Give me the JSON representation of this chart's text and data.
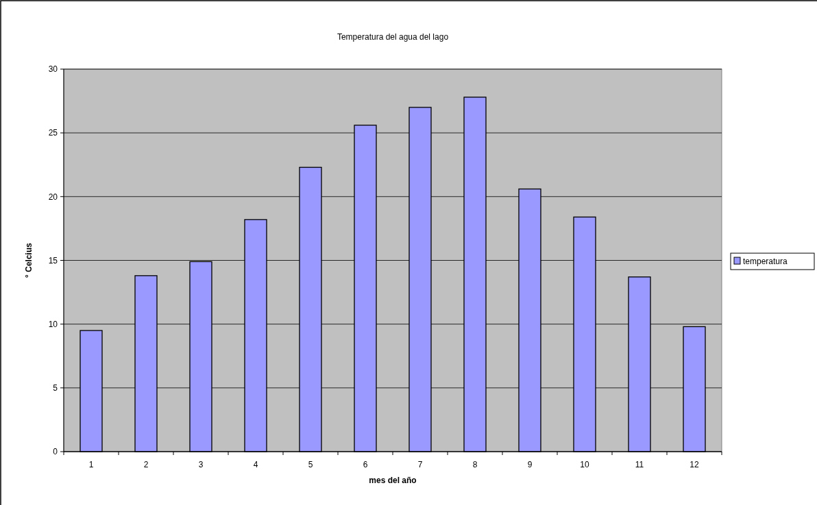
{
  "chart_data": {
    "type": "bar",
    "title": "Temperatura del agua del lago",
    "xlabel": "mes del año",
    "ylabel": "° Celcius",
    "categories": [
      "1",
      "2",
      "3",
      "4",
      "5",
      "6",
      "7",
      "8",
      "9",
      "10",
      "11",
      "12"
    ],
    "series": [
      {
        "name": "temperatura",
        "color": "#9999ff",
        "values": [
          9.5,
          13.8,
          14.9,
          18.2,
          22.3,
          25.6,
          27.0,
          27.8,
          20.6,
          18.4,
          13.7,
          9.8
        ]
      }
    ],
    "ylim": [
      0,
      30
    ],
    "yticks": [
      0,
      5,
      10,
      15,
      20,
      25,
      30
    ],
    "grid": "y",
    "legend": "right"
  }
}
